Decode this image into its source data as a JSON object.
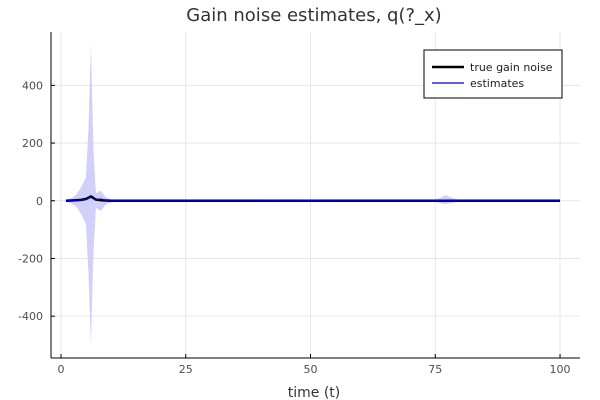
{
  "chart_data": {
    "type": "line",
    "title": "Gain noise estimates, q(?_x)",
    "xlabel": "time (t)",
    "ylabel": "",
    "xlim": [
      -2,
      104
    ],
    "ylim": [
      -545,
      585
    ],
    "x_ticks": [
      0,
      25,
      50,
      75,
      100
    ],
    "y_ticks": [
      400,
      200,
      0,
      -200,
      -400
    ],
    "x_tick_labels": [
      "0",
      "25",
      "50",
      "75",
      "100"
    ],
    "y_tick_labels": [
      "400",
      "200",
      "0",
      "-200",
      "-400"
    ],
    "grid": true,
    "legend_position": "top-right",
    "colors": {
      "true": "#000000",
      "estimate": "#0000cc",
      "band": "#c8c8f8",
      "grid": "#e6e6e6",
      "axis": "#000000"
    },
    "series": [
      {
        "name": "true gain noise",
        "x": [
          1,
          2,
          3,
          4,
          5,
          6,
          7,
          8,
          9,
          10,
          15,
          20,
          30,
          40,
          50,
          60,
          70,
          77,
          80,
          90,
          100
        ],
        "values": [
          0,
          1,
          2,
          3,
          6,
          15,
          4,
          2,
          1,
          0,
          0,
          0,
          0,
          0,
          0,
          0,
          0,
          0,
          0,
          0,
          0
        ]
      },
      {
        "name": "estimates",
        "x": [
          1,
          2,
          3,
          4,
          5,
          6,
          7,
          8,
          9,
          10,
          15,
          20,
          30,
          40,
          42,
          45,
          50,
          55,
          60,
          65,
          70,
          75,
          77,
          80,
          85,
          90,
          95,
          100
        ],
        "values": [
          0,
          1,
          2,
          3,
          5,
          12,
          4,
          6,
          2,
          0,
          0,
          0,
          0,
          0,
          1,
          0,
          1,
          0,
          0,
          0,
          0,
          0,
          2,
          0,
          0,
          0,
          0,
          0
        ],
        "band": {
          "x": [
            1,
            2,
            3,
            4,
            5,
            5.5,
            6,
            6.5,
            7,
            8,
            9,
            10,
            12,
            15,
            20,
            30,
            40,
            50,
            60,
            70,
            75,
            76,
            77,
            78,
            79,
            80,
            90,
            100
          ],
          "upper": [
            3,
            8,
            20,
            45,
            80,
            250,
            540,
            180,
            25,
            35,
            12,
            5,
            4,
            3,
            3,
            3,
            3,
            3,
            3,
            3,
            4,
            10,
            20,
            12,
            6,
            4,
            3,
            3
          ],
          "lower": [
            -3,
            -8,
            -20,
            -45,
            -80,
            -250,
            -500,
            -180,
            -25,
            -35,
            -12,
            -5,
            -4,
            -3,
            -3,
            -3,
            -3,
            -3,
            -3,
            -3,
            -4,
            -8,
            -12,
            -8,
            -5,
            -4,
            -3,
            -3
          ]
        }
      }
    ]
  }
}
